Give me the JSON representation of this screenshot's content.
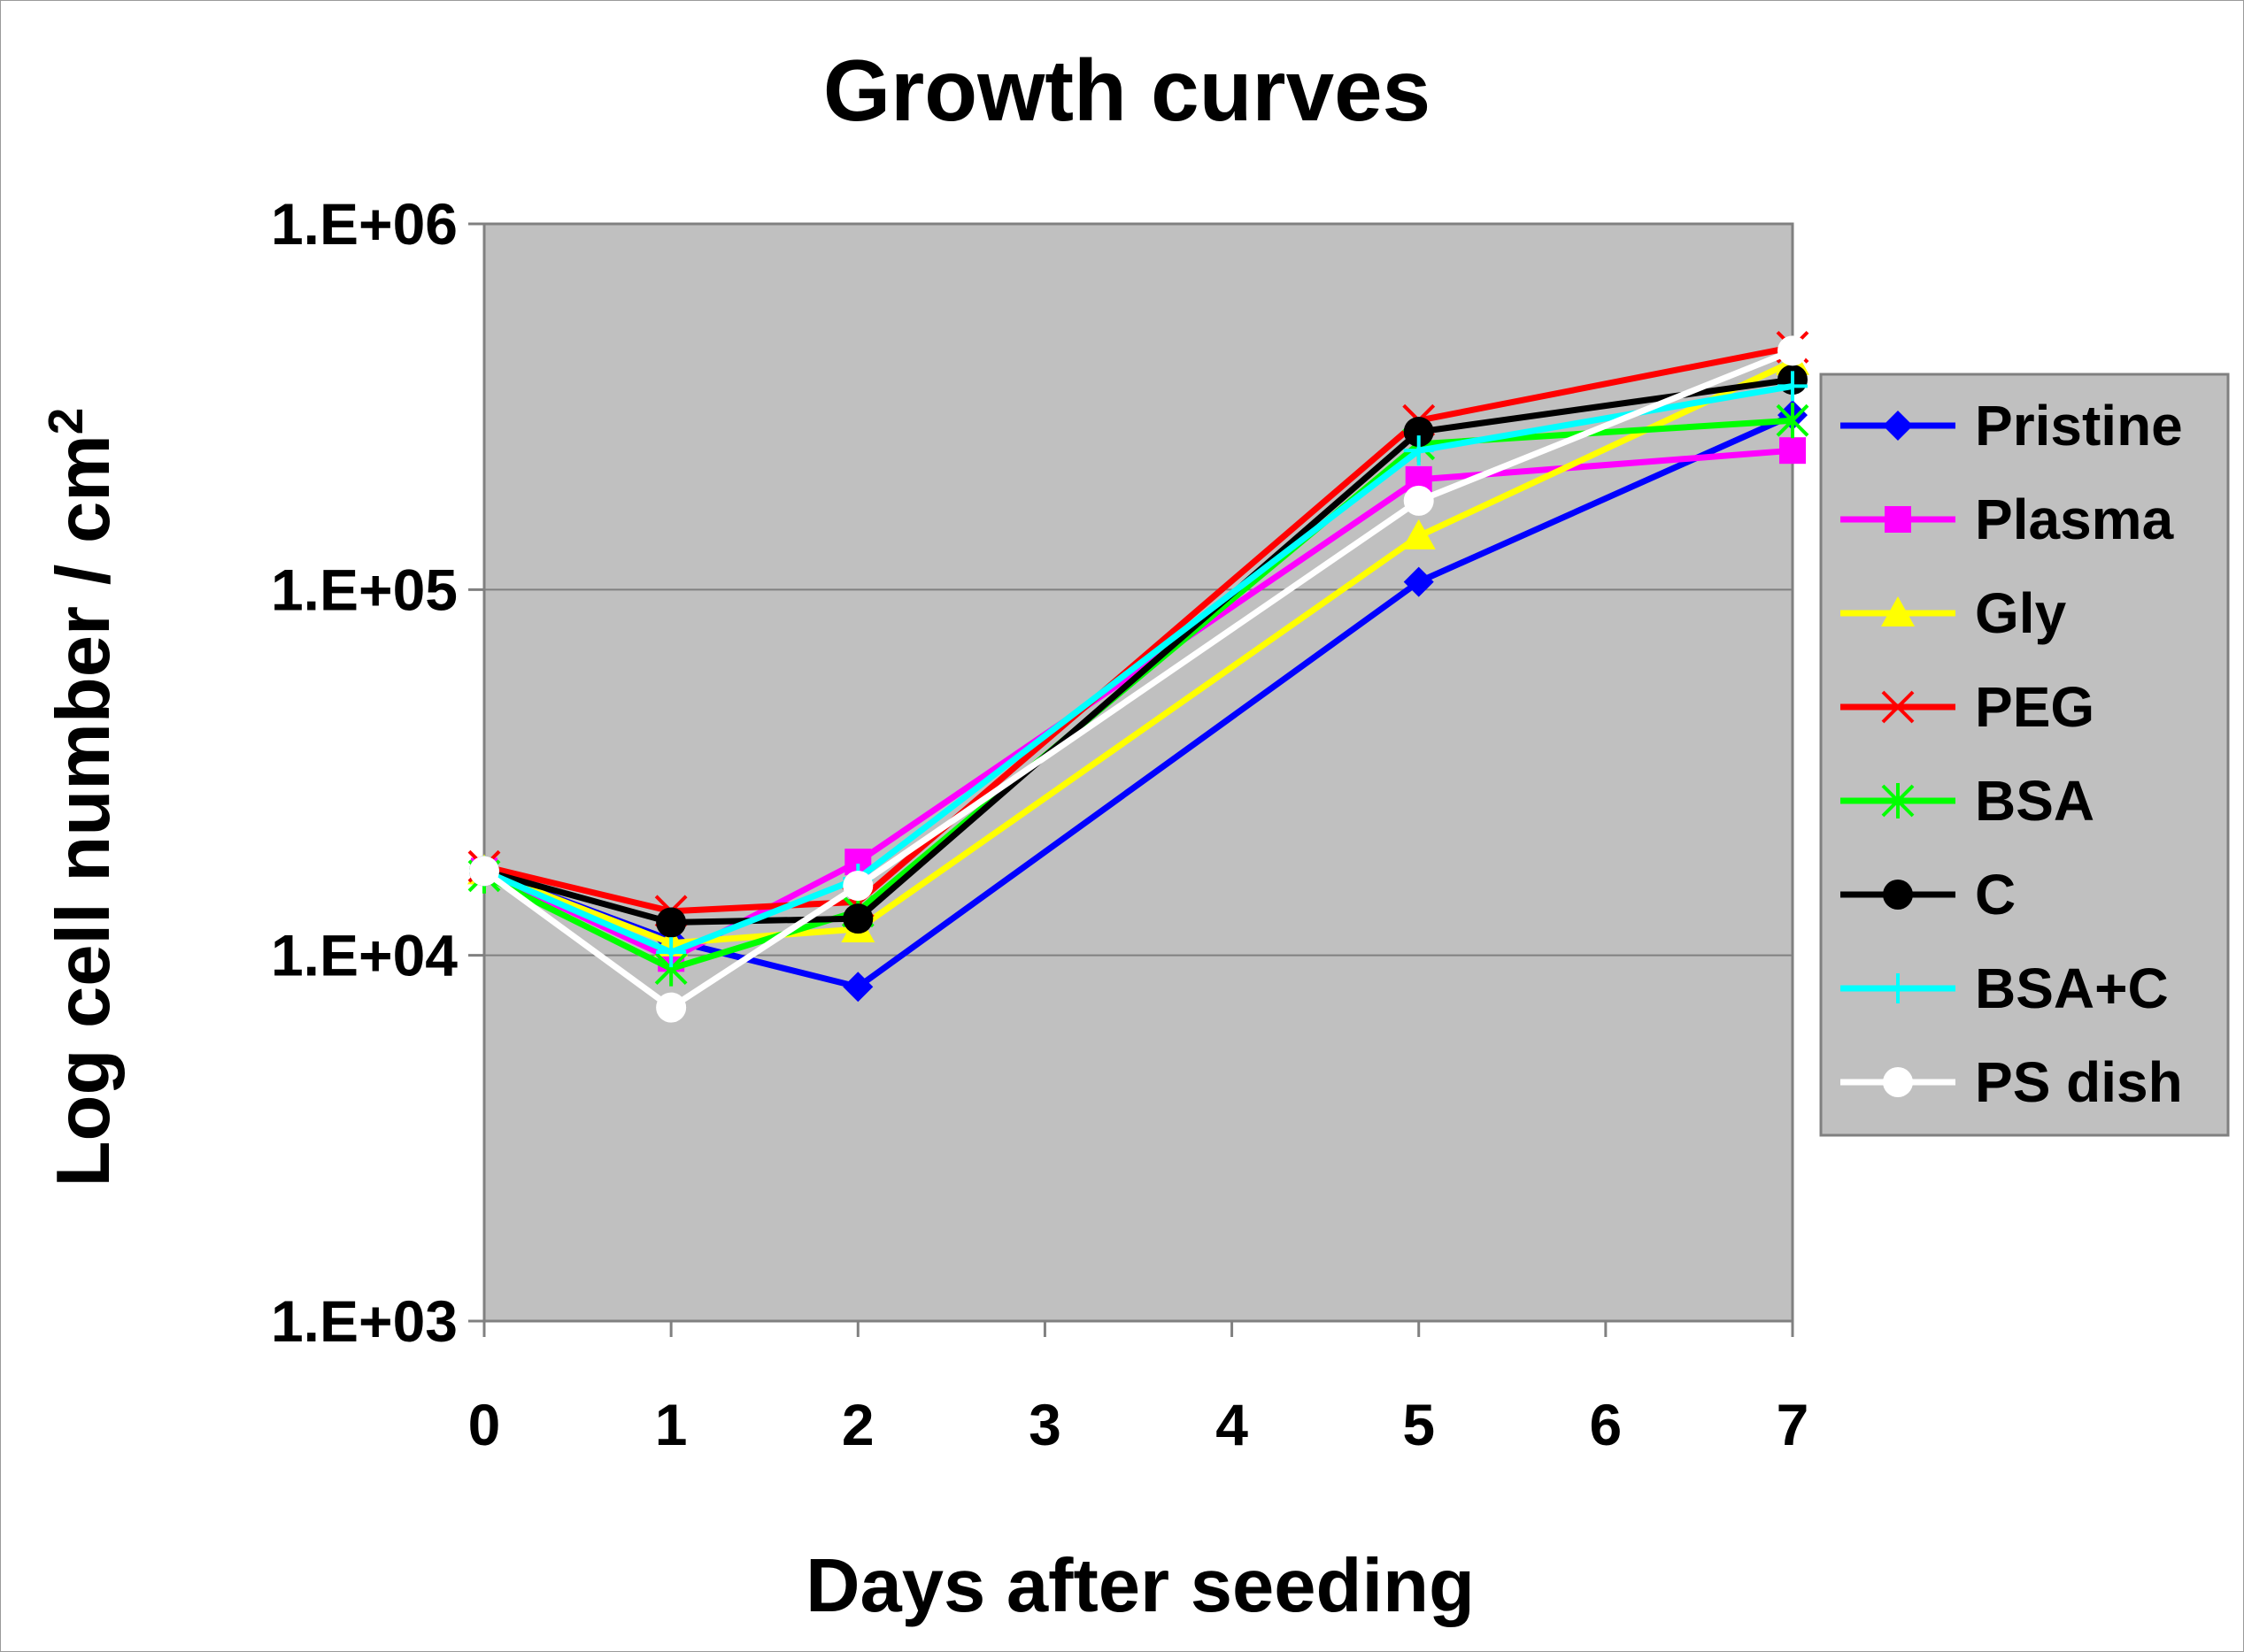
{
  "chart_data": {
    "type": "line",
    "title": "Growth curves",
    "xlabel": "Days after seeding",
    "ylabel": "Log cell number / cm",
    "ylabel_superscript": "2",
    "yscale": "log",
    "ylim": [
      1000,
      1000000
    ],
    "y_ticks": [
      1000,
      10000,
      100000,
      1000000
    ],
    "y_tick_labels": [
      "1.E+03",
      "1.E+04",
      "1.E+05",
      "1.E+06"
    ],
    "categories": [
      "0",
      "1",
      "2",
      "3",
      "4",
      "5",
      "6",
      "7"
    ],
    "plot_background": "#c0c0c0",
    "grid": true,
    "legend_position": "right",
    "series": [
      {
        "name": "Pristine",
        "color": "#0000ff",
        "marker": "diamond",
        "x": [
          0,
          1,
          2,
          5,
          7
        ],
        "values": [
          17000,
          11000,
          8200,
          105000,
          300000
        ]
      },
      {
        "name": "Plasma",
        "color": "#ff00ff",
        "marker": "square",
        "x": [
          0,
          1,
          2,
          5,
          7
        ],
        "values": [
          17000,
          9800,
          18000,
          200000,
          240000
        ]
      },
      {
        "name": "Gly",
        "color": "#ffff00",
        "marker": "triangle",
        "x": [
          0,
          1,
          2,
          5,
          7
        ],
        "values": [
          17000,
          10800,
          11800,
          140000,
          420000
        ]
      },
      {
        "name": "PEG",
        "color": "#ff0000",
        "marker": "x",
        "x": [
          0,
          1,
          2,
          5,
          7
        ],
        "values": [
          17500,
          13200,
          14000,
          290000,
          460000
        ]
      },
      {
        "name": "BSA",
        "color": "#00ff00",
        "marker": "asterisk",
        "x": [
          0,
          1,
          2,
          5,
          7
        ],
        "values": [
          16500,
          9200,
          13200,
          250000,
          290000
        ]
      },
      {
        "name": "C",
        "color": "#000000",
        "marker": "circle",
        "x": [
          0,
          1,
          2,
          5,
          7
        ],
        "values": [
          17000,
          12300,
          12600,
          270000,
          375000
        ]
      },
      {
        "name": "BSA+C",
        "color": "#00ffff",
        "marker": "plus",
        "x": [
          0,
          1,
          2,
          5,
          7
        ],
        "values": [
          17000,
          10200,
          16200,
          240000,
          360000
        ]
      },
      {
        "name": "PS dish",
        "color": "#ffffff",
        "marker": "circle",
        "x": [
          0,
          1,
          2,
          5,
          7
        ],
        "values": [
          17000,
          7200,
          15500,
          175000,
          450000
        ]
      }
    ]
  }
}
